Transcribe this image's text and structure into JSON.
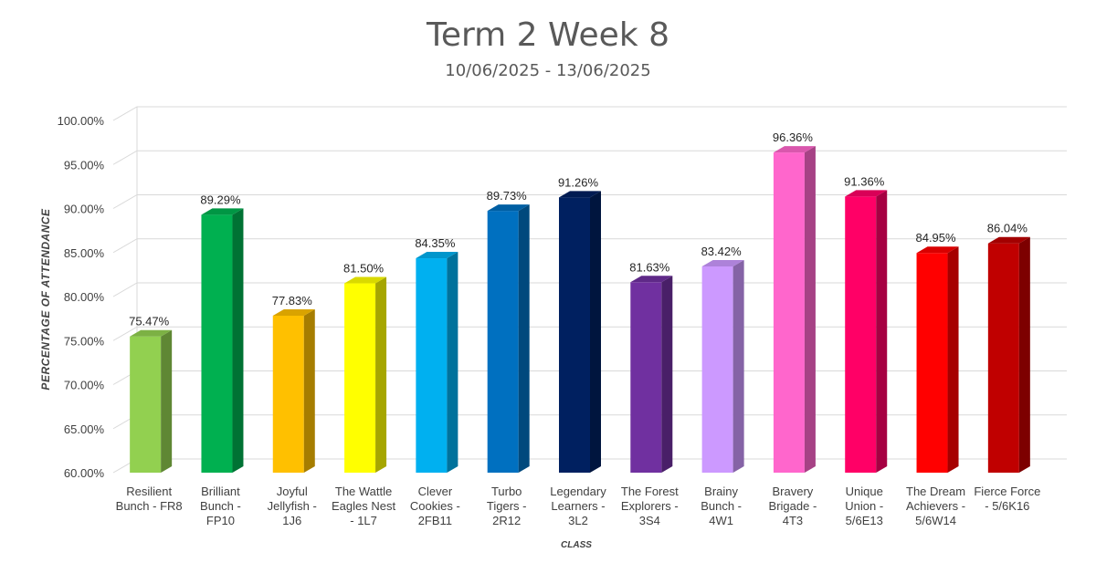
{
  "chart_data": {
    "type": "bar",
    "title": "Term 2 Week 8",
    "subtitle": "10/06/2025 - 13/06/2025",
    "xlabel": "CLASS",
    "ylabel": "PERCENTAGE OF ATTENDANCE",
    "ylim": [
      60,
      100
    ],
    "yticks": [
      "60.00%",
      "65.00%",
      "70.00%",
      "75.00%",
      "80.00%",
      "85.00%",
      "90.00%",
      "95.00%",
      "100.00%"
    ],
    "grid": true,
    "style": "3d-column",
    "categories": [
      [
        "Resilient",
        "Bunch - FR8"
      ],
      [
        "Brilliant",
        "Bunch -",
        "FP10"
      ],
      [
        "Joyful",
        "Jellyfish -",
        "1J6"
      ],
      [
        "The Wattle",
        "Eagles Nest",
        "- 1L7"
      ],
      [
        "Clever",
        "Cookies -",
        "2FB11"
      ],
      [
        "Turbo",
        "Tigers -",
        "2R12"
      ],
      [
        "Legendary",
        "Learners -",
        "3L2"
      ],
      [
        "The Forest",
        "Explorers -",
        "3S4"
      ],
      [
        "Brainy",
        "Bunch -",
        "4W1"
      ],
      [
        "Bravery",
        "Brigade -",
        "4T3"
      ],
      [
        "Unique",
        "Union -",
        "5/6E13"
      ],
      [
        "The Dream",
        "Achievers -",
        "5/6W14"
      ],
      [
        "Fierce Force",
        "- 5/6K16"
      ]
    ],
    "values": [
      75.47,
      89.29,
      77.83,
      81.5,
      84.35,
      89.73,
      91.26,
      81.63,
      83.42,
      96.36,
      91.36,
      84.95,
      86.04
    ],
    "data_labels": [
      "75.47%",
      "89.29%",
      "77.83%",
      "81.50%",
      "84.35%",
      "89.73%",
      "91.26%",
      "81.63%",
      "83.42%",
      "96.36%",
      "91.36%",
      "84.95%",
      "86.04%"
    ],
    "colors": [
      "#92d050",
      "#00b050",
      "#ffc000",
      "#ffff00",
      "#00b0f0",
      "#0070c0",
      "#002060",
      "#7030a0",
      "#cc99ff",
      "#ff66cc",
      "#ff0066",
      "#ff0000",
      "#c00000"
    ]
  }
}
